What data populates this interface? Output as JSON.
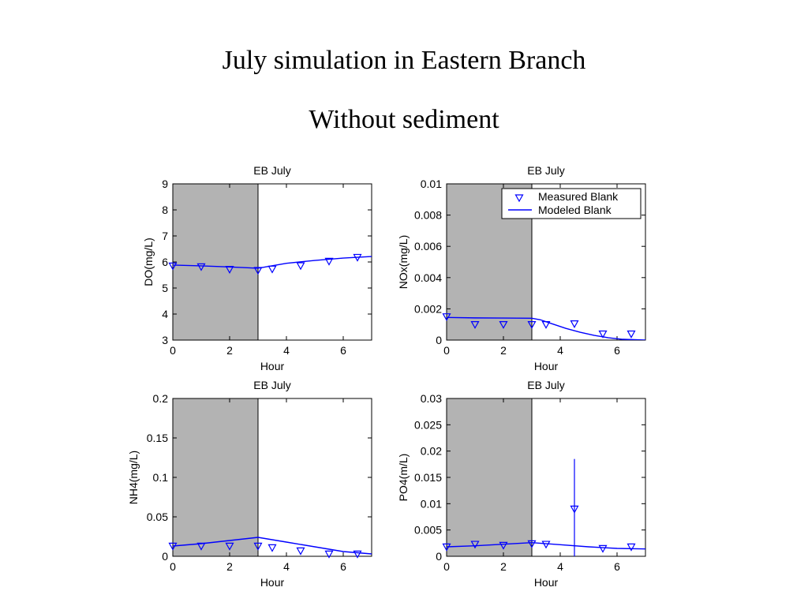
{
  "slide": {
    "title": "July simulation in Eastern Branch",
    "subtitle": "Without sediment"
  },
  "colors": {
    "series": "#0000ff",
    "shade": "#b3b3b3",
    "axis": "#000000"
  },
  "chart_data": [
    {
      "type": "line",
      "title": "EB July",
      "xlabel": "Hour",
      "ylabel": "DO(mg/L)",
      "xlim": [
        0,
        7
      ],
      "ylim": [
        3,
        9
      ],
      "xticks": [
        "0",
        "2",
        "4",
        "6"
      ],
      "yticks": [
        "3",
        "4",
        "5",
        "6",
        "7",
        "8",
        "9"
      ],
      "shaded_x": [
        0,
        3
      ],
      "grid": false,
      "series": [
        {
          "marker": "triangle-down",
          "style": "scatter",
          "x": [
            0,
            1,
            2,
            3,
            3.5,
            4.5,
            5.5,
            6.5
          ],
          "y": [
            5.85,
            5.82,
            5.72,
            5.68,
            5.73,
            5.86,
            6.03,
            6.18
          ]
        },
        {
          "style": "line",
          "x": [
            0,
            1,
            2,
            3,
            4,
            5,
            6,
            7
          ],
          "y": [
            5.88,
            5.85,
            5.81,
            5.76,
            5.95,
            6.06,
            6.15,
            6.21
          ]
        }
      ]
    },
    {
      "type": "line",
      "title": "EB July",
      "xlabel": "Hour",
      "ylabel": "NOx(mg/L)",
      "xlim": [
        0,
        7
      ],
      "ylim": [
        0,
        0.01
      ],
      "xticks": [
        "0",
        "2",
        "4",
        "6"
      ],
      "yticks": [
        "0",
        "0.002",
        "0.004",
        "0.006",
        "0.008",
        "0.01"
      ],
      "shaded_x": [
        0,
        3
      ],
      "grid": false,
      "legend": {
        "position": "top-right",
        "entries": [
          "Measured Blank",
          "Modeled Blank"
        ]
      },
      "series": [
        {
          "name": "Measured Blank",
          "marker": "triangle-down",
          "style": "scatter",
          "x": [
            0,
            1,
            2,
            3,
            3.5,
            4.5,
            5.5,
            6.5
          ],
          "y": [
            0.0015,
            0.001,
            0.001,
            0.001,
            0.001,
            0.00105,
            0.0004,
            0.0004
          ]
        },
        {
          "name": "Modeled Blank",
          "style": "line",
          "x": [
            0,
            1,
            2,
            3,
            3.3,
            3.7,
            4.2,
            4.7,
            5.2,
            5.7,
            6.2,
            7
          ],
          "y": [
            0.00145,
            0.00142,
            0.00141,
            0.0014,
            0.0013,
            0.00105,
            0.00075,
            0.0005,
            0.0003,
            0.00015,
            5e-05,
            0
          ]
        }
      ]
    },
    {
      "type": "line",
      "title": "EB July",
      "xlabel": "Hour",
      "ylabel": "NH4(mg/L)",
      "xlim": [
        0,
        7
      ],
      "ylim": [
        0,
        0.2
      ],
      "xticks": [
        "0",
        "2",
        "4",
        "6"
      ],
      "yticks": [
        "0",
        "0.05",
        "0.1",
        "0.15",
        "0.2"
      ],
      "shaded_x": [
        0,
        3
      ],
      "grid": false,
      "series": [
        {
          "marker": "triangle-down",
          "style": "scatter",
          "x": [
            0,
            1,
            2,
            3,
            3.5,
            4.5,
            5.5,
            6.5
          ],
          "y": [
            0.013,
            0.013,
            0.013,
            0.013,
            0.011,
            0.007,
            0.003,
            0.003
          ]
        },
        {
          "style": "line",
          "x": [
            0,
            1,
            2,
            3,
            4,
            5,
            6,
            7
          ],
          "y": [
            0.013,
            0.016,
            0.02,
            0.024,
            0.018,
            0.012,
            0.006,
            0.003
          ]
        }
      ]
    },
    {
      "type": "line",
      "title": "EB July",
      "xlabel": "Hour",
      "ylabel": "PO4(m/L)",
      "xlim": [
        0,
        7
      ],
      "ylim": [
        0,
        0.03
      ],
      "xticks": [
        "0",
        "2",
        "4",
        "6"
      ],
      "yticks": [
        "0",
        "0.005",
        "0.01",
        "0.015",
        "0.02",
        "0.025",
        "0.03"
      ],
      "shaded_x": [
        0,
        3
      ],
      "grid": false,
      "series": [
        {
          "marker": "triangle-down",
          "style": "scatter",
          "x": [
            0,
            1,
            2,
            3,
            3.5,
            4.5,
            5.5,
            6.5
          ],
          "y": [
            0.0018,
            0.0023,
            0.0021,
            0.0024,
            0.0023,
            0.009,
            0.0015,
            0.0018
          ],
          "error_bars": [
            {
              "x": 4.5,
              "low": 0.0,
              "high": 0.0185
            }
          ]
        },
        {
          "style": "line",
          "x": [
            0,
            1,
            2,
            3,
            4,
            5,
            6,
            7
          ],
          "y": [
            0.0018,
            0.002,
            0.0023,
            0.0026,
            0.0022,
            0.0018,
            0.0015,
            0.0014
          ]
        }
      ]
    }
  ]
}
